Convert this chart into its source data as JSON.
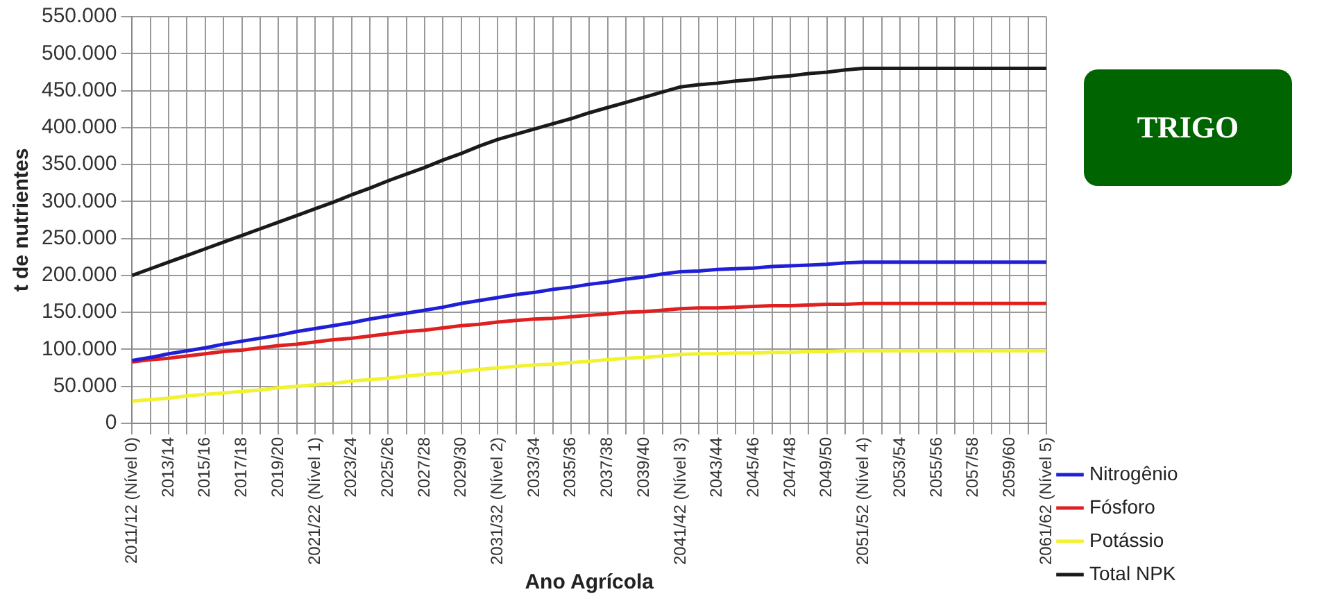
{
  "chart_data": {
    "type": "line",
    "xlabel": "Ano Agrícola",
    "ylabel": "t de nutrientes",
    "annotations": [
      "TRIGO"
    ],
    "categories": [
      "2011/12 (Nível 0)",
      null,
      "2013/14",
      null,
      "2015/16",
      null,
      "2017/18",
      null,
      "2019/20",
      null,
      "2021/22 (Nível 1)",
      null,
      "2023/24",
      null,
      "2025/26",
      null,
      "2027/28",
      null,
      "2029/30",
      null,
      "2031/32 (Nível 2)",
      null,
      "2033/34",
      null,
      "2035/36",
      null,
      "2037/38",
      null,
      "2039/40",
      null,
      "2041/42 (Nível 3)",
      null,
      "2043/44",
      null,
      "2045/46",
      null,
      "2047/48",
      null,
      "2049/50",
      null,
      "2051/52 (Nível 4)",
      null,
      "2053/54",
      null,
      "2055/56",
      null,
      "2057/58",
      null,
      "2059/60",
      null,
      "2061/62 (Nível 5)"
    ],
    "series": [
      {
        "name": "Nitrogênio",
        "color": "#1f1fd6",
        "values": [
          85000,
          89000,
          94000,
          98000,
          102000,
          107000,
          111000,
          115000,
          119000,
          124000,
          128000,
          132000,
          136000,
          141000,
          145000,
          149000,
          153000,
          157000,
          162000,
          166000,
          170000,
          174000,
          177000,
          181000,
          184000,
          188000,
          191000,
          195000,
          198000,
          202000,
          205000,
          206000,
          208000,
          209000,
          210000,
          212000,
          213000,
          214000,
          215000,
          217000,
          218000,
          218000,
          218000,
          218000,
          218000,
          218000,
          218000,
          218000,
          218000,
          218000,
          218000
        ]
      },
      {
        "name": "Fósforo",
        "color": "#e02020",
        "values": [
          83000,
          86000,
          88000,
          91000,
          94000,
          97000,
          99000,
          102000,
          105000,
          107000,
          110000,
          113000,
          115000,
          118000,
          121000,
          124000,
          126000,
          129000,
          132000,
          134000,
          137000,
          139000,
          141000,
          142000,
          144000,
          146000,
          148000,
          150000,
          151000,
          153000,
          155000,
          156000,
          156000,
          157000,
          158000,
          159000,
          159000,
          160000,
          161000,
          161000,
          162000,
          162000,
          162000,
          162000,
          162000,
          162000,
          162000,
          162000,
          162000,
          162000,
          162000
        ]
      },
      {
        "name": "Potássio",
        "color": "#f2f230",
        "values": [
          30000,
          32000,
          34000,
          37000,
          39000,
          41000,
          43000,
          45000,
          48000,
          50000,
          52000,
          54000,
          57000,
          59000,
          61000,
          64000,
          66000,
          68000,
          70000,
          73000,
          75000,
          77000,
          79000,
          80000,
          82000,
          84000,
          86000,
          88000,
          89000,
          91000,
          93000,
          94000,
          94000,
          95000,
          95000,
          96000,
          96000,
          97000,
          97000,
          98000,
          98000,
          98000,
          98000,
          98000,
          98000,
          98000,
          98000,
          98000,
          98000,
          98000,
          98000
        ]
      },
      {
        "name": "Total NPK",
        "color": "#1a1a1a",
        "values": [
          200000,
          209000,
          218000,
          227000,
          236000,
          245000,
          254000,
          263000,
          272000,
          281000,
          290000,
          299000,
          309000,
          318000,
          328000,
          337000,
          346000,
          356000,
          365000,
          375000,
          384000,
          391000,
          398000,
          405000,
          412000,
          420000,
          427000,
          434000,
          441000,
          448000,
          455000,
          458000,
          460000,
          463000,
          465000,
          468000,
          470000,
          473000,
          475000,
          478000,
          480000,
          480000,
          480000,
          480000,
          480000,
          480000,
          480000,
          480000,
          480000,
          480000,
          480000
        ]
      }
    ],
    "ylim": [
      0,
      550000
    ],
    "yticks": [
      {
        "value": 0,
        "label": "0"
      },
      {
        "value": 50000,
        "label": "50.000"
      },
      {
        "value": 100000,
        "label": "100.000"
      },
      {
        "value": 150000,
        "label": "150.000"
      },
      {
        "value": 200000,
        "label": "200.000"
      },
      {
        "value": 250000,
        "label": "250.000"
      },
      {
        "value": 300000,
        "label": "300.000"
      },
      {
        "value": 350000,
        "label": "350.000"
      },
      {
        "value": 400000,
        "label": "400.000"
      },
      {
        "value": 450000,
        "label": "450.000"
      },
      {
        "value": 500000,
        "label": "500.000"
      },
      {
        "value": 550000,
        "label": "550.000"
      }
    ],
    "grid": true,
    "legend": "right",
    "marker": "none",
    "line_style": "solid"
  }
}
